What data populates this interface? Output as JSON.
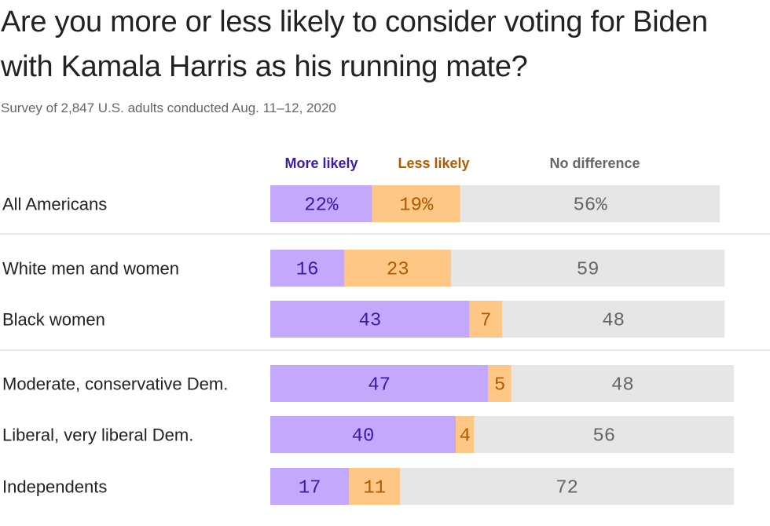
{
  "title": "Are you more or less likely to consider voting for Biden with Kamala Harris as his running mate?",
  "subtitle": "Survey of  2,847 U.S. adults conducted Aug. 11–12, 2020",
  "colors": {
    "more_fill": "#c3a8fb",
    "less_fill": "#ffc785",
    "none_fill": "#e6e6e6",
    "more_text": "#3b1ba8",
    "less_text": "#b25a00",
    "none_text": "#666666",
    "divider": "#d0d0d0"
  },
  "chart_data": {
    "type": "bar",
    "orientation": "horizontal",
    "stacked": true,
    "legend_position": "top",
    "grid": false,
    "xlim": [
      0,
      100
    ],
    "categories": [
      "All Americans",
      "White men and women",
      "Black women",
      "Moderate, conservative Dem.",
      "Liberal, very liberal Dem.",
      "Independents"
    ],
    "value_labels": [
      [
        "22%",
        "19%",
        "56%"
      ],
      [
        "16",
        "23",
        "59"
      ],
      [
        "43",
        "7",
        "48"
      ],
      [
        "47",
        "5",
        "48"
      ],
      [
        "40",
        "4",
        "56"
      ],
      [
        "17",
        "11",
        "72"
      ]
    ],
    "series": [
      {
        "name": "More likely",
        "values": [
          22,
          16,
          43,
          47,
          40,
          17
        ]
      },
      {
        "name": "Less likely",
        "values": [
          19,
          23,
          7,
          5,
          4,
          11
        ]
      },
      {
        "name": "No difference",
        "values": [
          56,
          59,
          48,
          48,
          56,
          72
        ]
      }
    ]
  }
}
